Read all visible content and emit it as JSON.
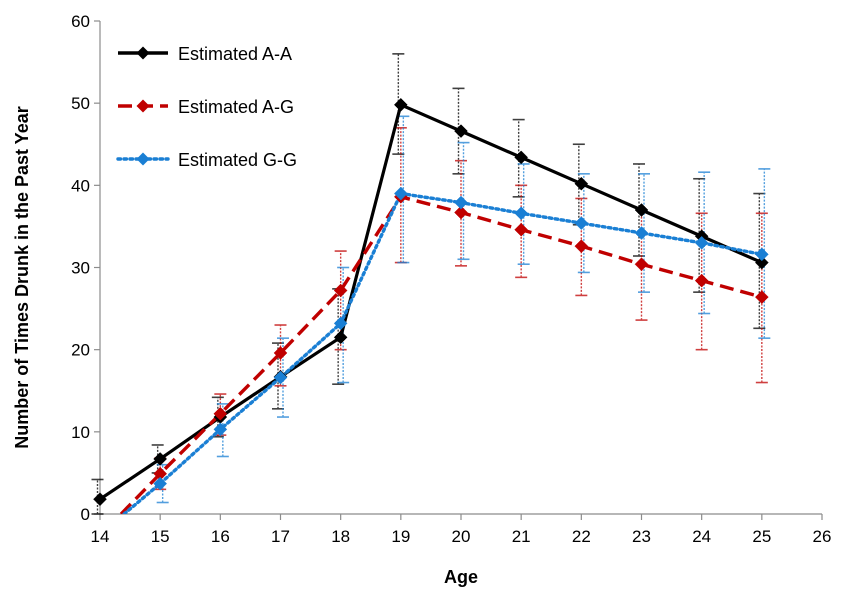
{
  "chart_data": {
    "type": "line",
    "title": "",
    "xlabel": "Age",
    "ylabel": "Number of Times Drunk in the Past Year",
    "xlim": [
      14,
      26
    ],
    "ylim": [
      0,
      60
    ],
    "xticks": [
      "14",
      "15",
      "16",
      "17",
      "18",
      "19",
      "20",
      "21",
      "22",
      "23",
      "24",
      "25",
      "26"
    ],
    "yticks": [
      "0",
      "10",
      "20",
      "30",
      "40",
      "50",
      "60"
    ],
    "grid": false,
    "legend": "top-left",
    "series": [
      {
        "name": "Estimated A-A",
        "color": "#000000",
        "dash": "solid",
        "x": [
          14,
          15,
          16,
          17,
          18,
          19,
          20,
          21,
          22,
          23,
          24,
          25
        ],
        "y": [
          1.8,
          6.7,
          11.8,
          16.7,
          21.5,
          49.8,
          46.6,
          43.4,
          40.2,
          37.0,
          33.8,
          30.6
        ],
        "err_low": [
          0.0,
          5.0,
          9.4,
          12.8,
          15.8,
          43.8,
          41.4,
          38.6,
          35.2,
          31.4,
          27.0,
          22.6
        ],
        "err_high": [
          4.2,
          8.4,
          14.2,
          20.8,
          27.4,
          56.0,
          51.8,
          48.0,
          45.0,
          42.6,
          40.8,
          39.0
        ]
      },
      {
        "name": "Estimated A-G",
        "color": "#c00000",
        "dash": "dashed",
        "x": [
          14.35,
          15,
          16,
          17,
          18,
          19,
          20,
          21,
          22,
          23,
          24,
          25
        ],
        "y": [
          0.0,
          4.9,
          12.2,
          19.6,
          27.2,
          38.6,
          36.7,
          34.6,
          32.6,
          30.4,
          28.4,
          26.4
        ],
        "err_low": [
          0.0,
          3.0,
          9.6,
          15.6,
          20.0,
          30.6,
          30.2,
          28.8,
          26.6,
          23.6,
          20.0,
          16.0
        ],
        "err_high": [
          0.0,
          6.8,
          14.6,
          23.0,
          32.0,
          47.0,
          43.0,
          40.0,
          38.4,
          37.0,
          36.6,
          36.6
        ]
      },
      {
        "name": "Estimated G-G",
        "color": "#1a7fd4",
        "dash": "dotted",
        "x": [
          14.4,
          15,
          16,
          17,
          18,
          19,
          20,
          21,
          22,
          23,
          24,
          25
        ],
        "y": [
          0.0,
          3.7,
          10.3,
          16.6,
          23.2,
          39.0,
          37.9,
          36.6,
          35.4,
          34.2,
          33.0,
          31.6
        ],
        "err_low": [
          0.0,
          1.4,
          7.0,
          11.8,
          16.0,
          30.6,
          31.0,
          30.4,
          29.4,
          27.0,
          24.4,
          21.4
        ],
        "err_high": [
          0.0,
          6.0,
          13.4,
          21.4,
          30.0,
          48.4,
          45.2,
          42.6,
          41.4,
          41.4,
          41.6,
          42.0
        ]
      }
    ]
  }
}
